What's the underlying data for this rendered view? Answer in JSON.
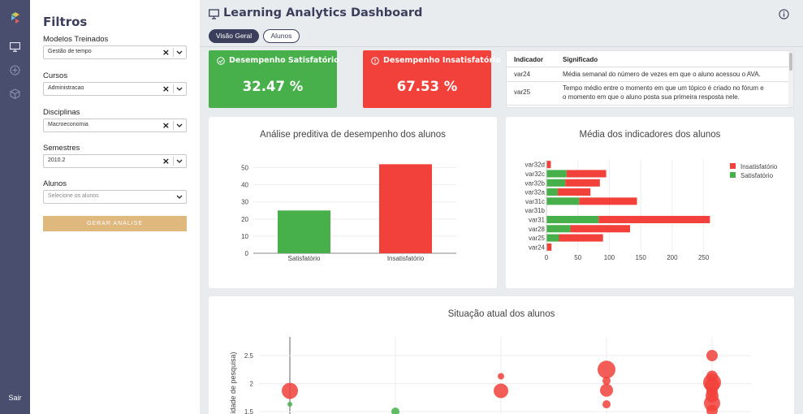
{
  "rail": {
    "logout_label": "Sair"
  },
  "filters": {
    "title": "Filtros",
    "groups": [
      {
        "label": "Modelos Treinados",
        "value": "Gestão de tempo"
      },
      {
        "label": "Cursos",
        "value": "Administracao"
      },
      {
        "label": "Disciplinas",
        "value": "Macroeconomia"
      },
      {
        "label": "Semestres",
        "value": "2010.2"
      },
      {
        "label": "Alunos",
        "placeholder": "Selecione os alunos"
      }
    ],
    "generate_label": "GERAR ANÁLISE"
  },
  "header": {
    "title": "Learning Analytics Dashboard",
    "tabs": [
      {
        "label": "Visão Geral"
      },
      {
        "label": "Alunos"
      }
    ]
  },
  "kpis": {
    "satisfactory": {
      "label": "Desempenho Satisfatório",
      "value": "32.47 %",
      "color": "#47b04b"
    },
    "unsatisfactory": {
      "label": "Desempenho Insatisfatório",
      "value": "67.53 %",
      "color": "#f1413a"
    }
  },
  "indicators": {
    "headers": [
      "Indicador",
      "Significado"
    ],
    "rows": [
      {
        "code": "var24",
        "meaning_lines": [
          "Média semanal do número de vezes em que o aluno acessou o AVA."
        ]
      },
      {
        "code": "var25",
        "meaning_lines": [
          "Tempo médio entre o momento em que um tópico é criado no fórum e",
          "o momento em que o aluno posta sua primeira resposta nele."
        ]
      }
    ]
  },
  "chart_data": [
    {
      "type": "bar",
      "title": "Análise preditiva de desempenho dos alunos",
      "categories": [
        "Satisfatório",
        "Insatisfatório"
      ],
      "values": [
        25,
        52
      ],
      "colors": [
        "#47b04b",
        "#f1413a"
      ],
      "ylim": [
        0,
        55
      ],
      "yticks": [
        0,
        10,
        20,
        30,
        40,
        50
      ],
      "grid": true
    },
    {
      "type": "bar",
      "orientation": "horizontal",
      "stacked": true,
      "title": "Média dos indicadores dos alunos",
      "categories": [
        "var24",
        "var25",
        "var28",
        "var31",
        "var31b",
        "var31c",
        "var32a",
        "var32b",
        "var32c",
        "var32d"
      ],
      "series": [
        {
          "name": "Satisfatório",
          "color": "#47b04b",
          "values": [
            1,
            20,
            38,
            83,
            0,
            52,
            18,
            30,
            32,
            1
          ]
        },
        {
          "name": "Insatisfatório",
          "color": "#f1413a",
          "values": [
            7,
            70,
            95,
            177,
            0,
            92,
            52,
            55,
            63,
            6
          ]
        }
      ],
      "legend_order": [
        "Insatisfatório",
        "Satisfatório"
      ],
      "legend_position": "top-right",
      "xlim": [
        0,
        275
      ],
      "xticks": [
        0,
        50,
        100,
        150,
        200,
        250
      ],
      "grid": true
    },
    {
      "type": "scatter",
      "title": "Situação atual dos alunos",
      "ylabel": "...idade de pesquisa)",
      "yticks": [
        1.5,
        2,
        2.5
      ],
      "ylim": [
        1.4,
        2.75
      ],
      "xlim": [
        0,
        5.2
      ],
      "series": [
        {
          "name": "Insatisfatório",
          "color": "#f1413a",
          "points": [
            {
              "x": 0,
              "y": 1.87,
              "size": 10
            },
            {
              "x": 2,
              "y": 2.13,
              "size": 4
            },
            {
              "x": 2,
              "y": 1.87,
              "size": 9
            },
            {
              "x": 3,
              "y": 2.25,
              "size": 11
            },
            {
              "x": 3,
              "y": 2.05,
              "size": 5
            },
            {
              "x": 3,
              "y": 1.88,
              "size": 8
            },
            {
              "x": 3,
              "y": 1.63,
              "size": 5
            },
            {
              "x": 4,
              "y": 2.5,
              "size": 7
            },
            {
              "x": 4,
              "y": 2.13,
              "size": 7
            },
            {
              "x": 4,
              "y": 2.02,
              "size": 11
            },
            {
              "x": 4,
              "y": 1.97,
              "size": 9
            },
            {
              "x": 4,
              "y": 1.86,
              "size": 7
            },
            {
              "x": 4,
              "y": 1.78,
              "size": 8
            },
            {
              "x": 4,
              "y": 1.65,
              "size": 10
            },
            {
              "x": 4,
              "y": 1.52,
              "size": 7
            }
          ]
        },
        {
          "name": "Satisfatório",
          "color": "#47b04b",
          "points": [
            {
              "x": 0,
              "y": 1.63,
              "size": 3
            },
            {
              "x": 1,
              "y": 1.5,
              "size": 5
            }
          ]
        }
      ]
    }
  ]
}
